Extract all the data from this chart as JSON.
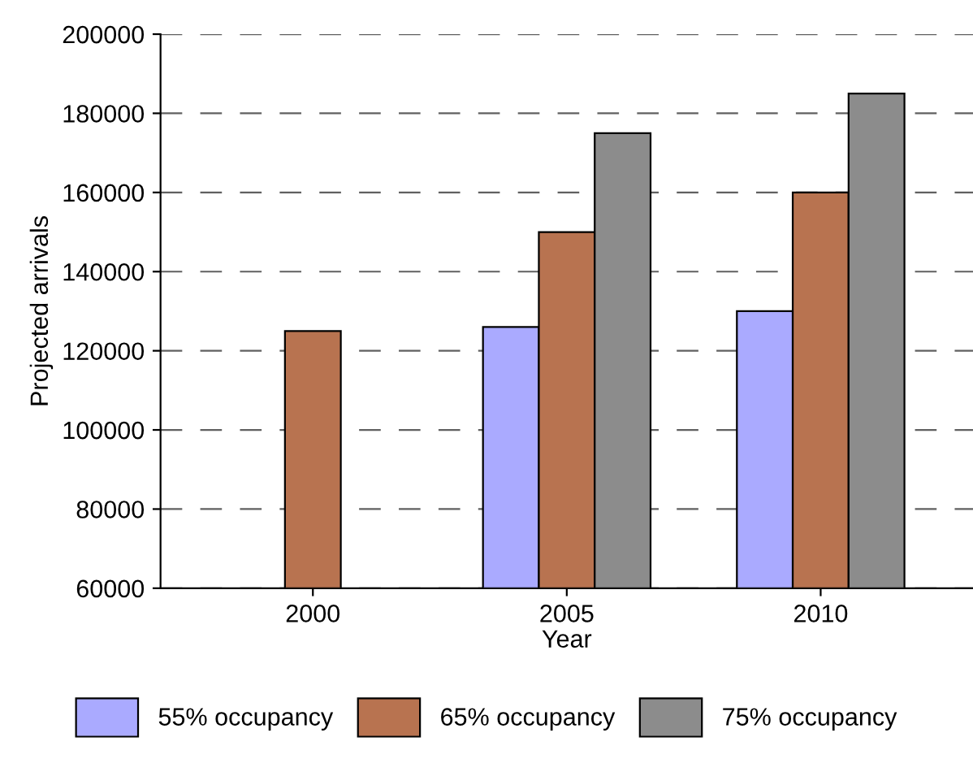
{
  "chart_data": {
    "type": "bar",
    "xlabel": "Year",
    "ylabel": "Projected arrivals",
    "categories": [
      "2000",
      "2005",
      "2010"
    ],
    "series": [
      {
        "name": "55% occupancy",
        "color": "#aaaaff",
        "values": [
          null,
          126000,
          130000
        ]
      },
      {
        "name": "65% occupancy",
        "color": "#b87350",
        "values": [
          125000,
          150000,
          160000
        ]
      },
      {
        "name": "75% occupancy",
        "color": "#8c8c8c",
        "values": [
          null,
          175000,
          185000
        ]
      }
    ],
    "ylim": [
      60000,
      200000
    ],
    "yticks": [
      60000,
      80000,
      100000,
      120000,
      140000,
      160000,
      180000,
      200000
    ],
    "grid": "y",
    "legend": "bottom"
  }
}
